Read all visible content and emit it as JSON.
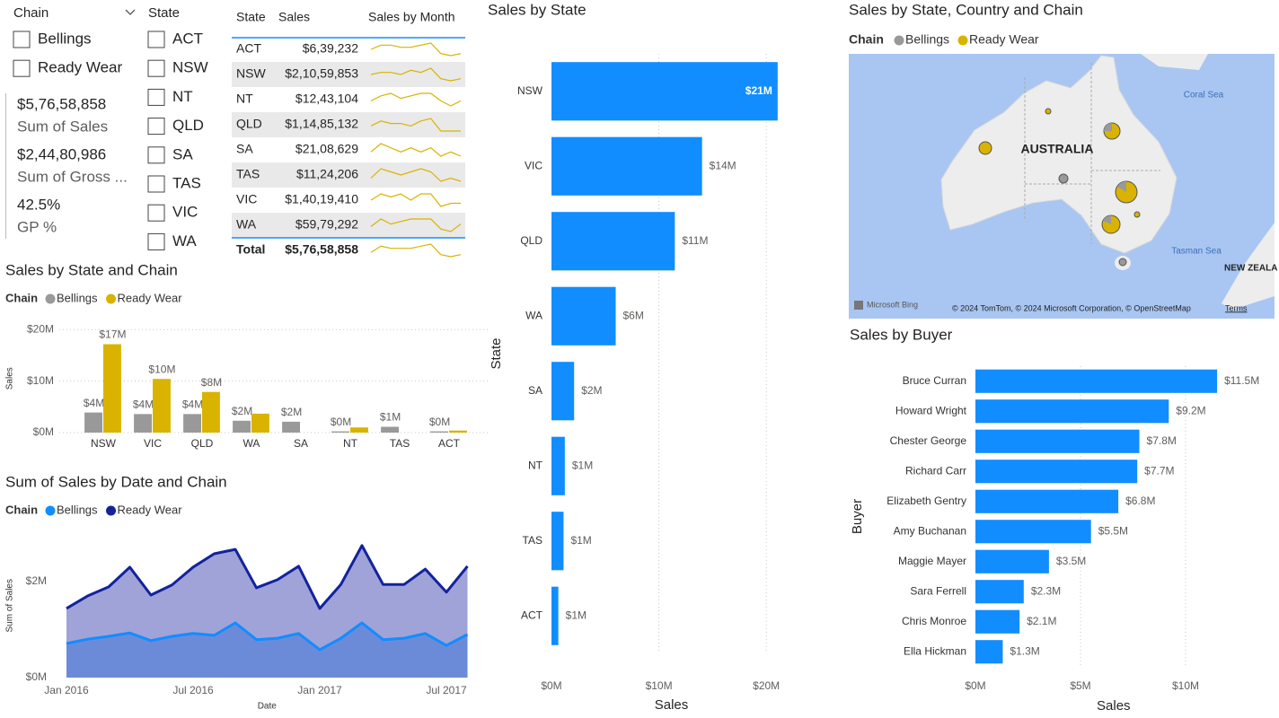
{
  "slicers": [
    {
      "title": "Chain",
      "options": [
        "Bellings",
        "Ready Wear"
      ]
    },
    {
      "title": "State",
      "options": [
        "ACT",
        "NSW",
        "NT",
        "QLD",
        "SA",
        "TAS",
        "VIC",
        "WA"
      ]
    }
  ],
  "cards": [
    {
      "value": "$5,76,58,858",
      "label": "Sum of Sales"
    },
    {
      "value": "$2,44,80,986",
      "label": "Sum of Gross ..."
    },
    {
      "value": "42.5%",
      "label": "GP %"
    }
  ],
  "table": {
    "columns": [
      "State",
      "Sales",
      "Sales by Month"
    ],
    "rows": [
      [
        "ACT",
        "$6,39,232"
      ],
      [
        "NSW",
        "$2,10,59,853"
      ],
      [
        "NT",
        "$12,43,104"
      ],
      [
        "QLD",
        "$1,14,85,132"
      ],
      [
        "SA",
        "$21,08,629"
      ],
      [
        "TAS",
        "$11,24,206"
      ],
      [
        "VIC",
        "$1,40,19,410"
      ],
      [
        "WA",
        "$59,79,292"
      ]
    ],
    "total": [
      "Total",
      "$5,76,58,858"
    ],
    "sparklines": [
      [
        5,
        7,
        7,
        6,
        6,
        7,
        8,
        3,
        2,
        3
      ],
      [
        5,
        6,
        6,
        5,
        7,
        6,
        8,
        3,
        2,
        3
      ],
      [
        4,
        6,
        7,
        5,
        6,
        7,
        7,
        4,
        2,
        4
      ],
      [
        5,
        7,
        6,
        6,
        5,
        7,
        8,
        3,
        3,
        3
      ],
      [
        6,
        8,
        7,
        6,
        7,
        6,
        7,
        5,
        6,
        5
      ],
      [
        4,
        7,
        6,
        5,
        6,
        7,
        6,
        3,
        4,
        3
      ],
      [
        5,
        7,
        6,
        7,
        5,
        7,
        7,
        3,
        4,
        4
      ],
      [
        4,
        7,
        5,
        6,
        7,
        7,
        7,
        3,
        2,
        5
      ]
    ],
    "total_sparkline": [
      4,
      7,
      6,
      6,
      6,
      7,
      8,
      3,
      2,
      3
    ]
  },
  "map": {
    "title": "Sales by State, Country and Chain",
    "legend_title": "Chain",
    "legend": [
      {
        "name": "Bellings",
        "color": "#999999"
      },
      {
        "name": "Ready Wear",
        "color": "#D9B300"
      }
    ],
    "labels": [
      "AUSTRALIA",
      "Coral Sea",
      "Tasman Sea",
      "NEW ZEALA"
    ],
    "brand": "Microsoft Bing",
    "attribution": "© 2024 TomTom, © 2024 Microsoft Corporation, © OpenStreetMap",
    "terms": "Terms"
  },
  "chart_data": [
    {
      "type": "hbar",
      "title": "Sales by State",
      "categories": [
        "NSW",
        "VIC",
        "QLD",
        "WA",
        "SA",
        "NT",
        "TAS",
        "ACT"
      ],
      "values": [
        21059853,
        14019410,
        11485132,
        5979292,
        2108629,
        1243104,
        1124206,
        639232
      ],
      "value_labels": [
        "$21M",
        "$14M",
        "$11M",
        "$6M",
        "$2M",
        "$1M",
        "$1M",
        "$1M"
      ],
      "color": "#118DFF",
      "xlim": [
        0,
        24000000
      ],
      "xticks": [
        {
          "value": 0,
          "label": "$0M"
        },
        {
          "value": 10000000,
          "label": "$10M"
        },
        {
          "value": 20000000,
          "label": "$20M"
        }
      ],
      "xlabel": "Sales",
      "ylabel": "State",
      "grid": true
    },
    {
      "type": "column",
      "title": "Sales by State and Chain",
      "legend_title": "Chain",
      "categories": [
        "NSW",
        "VIC",
        "QLD",
        "WA",
        "SA",
        "NT",
        "TAS",
        "ACT"
      ],
      "series": [
        {
          "name": "Bellings",
          "color": "#999999",
          "values": [
            3900000,
            3600000,
            3600000,
            2300000,
            2108629,
            240000,
            1124206,
            240000
          ],
          "value_labels": [
            "$4M",
            "$4M",
            "$4M",
            "$2M",
            "$2M",
            "$0M",
            "$1M",
            "$0M"
          ]
        },
        {
          "name": "Ready Wear",
          "color": "#D9B300",
          "values": [
            17160000,
            10420000,
            7890000,
            3680000,
            null,
            1000000,
            null,
            400000
          ],
          "value_labels": [
            "$17M",
            "$10M",
            "$8M",
            null,
            null,
            null,
            null,
            null
          ]
        }
      ],
      "ylim": [
        0,
        21000000
      ],
      "yticks": [
        {
          "value": 0,
          "label": "$0M"
        },
        {
          "value": 10000000,
          "label": "$10M"
        },
        {
          "value": 20000000,
          "label": "$20M"
        }
      ],
      "ylabel": "Sales",
      "grid": true
    },
    {
      "type": "area",
      "title": "Sum of Sales by Date and Chain",
      "legend_title": "Chain",
      "stacked": true,
      "x": [
        "2016-01",
        "2016-02",
        "2016-03",
        "2016-04",
        "2016-05",
        "2016-06",
        "2016-07",
        "2016-08",
        "2016-09",
        "2016-10",
        "2016-11",
        "2016-12",
        "2017-01",
        "2017-02",
        "2017-03",
        "2017-04",
        "2017-05",
        "2017-06",
        "2017-07",
        "2017-08"
      ],
      "series": [
        {
          "name": "Bellings",
          "color": "#118DFF",
          "fill": "#6B8BD9",
          "values": [
            710000,
            800000,
            860000,
            930000,
            770000,
            860000,
            920000,
            880000,
            1140000,
            790000,
            820000,
            920000,
            580000,
            820000,
            1140000,
            790000,
            820000,
            920000,
            670000,
            900000
          ]
        },
        {
          "name": "Ready Wear",
          "color": "#12239E",
          "fill": "#A0A3D8",
          "values": [
            730000,
            900000,
            1030000,
            1370000,
            950000,
            1070000,
            1380000,
            1700000,
            1530000,
            1080000,
            1220000,
            1400000,
            860000,
            1120000,
            1610000,
            1150000,
            1120000,
            1340000,
            1110000,
            1420000
          ]
        }
      ],
      "xticks": [
        {
          "value": "2016-01",
          "label": "Jan 2016"
        },
        {
          "value": "2016-07",
          "label": "Jul 2016"
        },
        {
          "value": "2017-01",
          "label": "Jan 2017"
        },
        {
          "value": "2017-07",
          "label": "Jul 2017"
        }
      ],
      "ylim": [
        0,
        3000000
      ],
      "yticks": [
        {
          "value": 0,
          "label": "$0M"
        },
        {
          "value": 2000000,
          "label": "$2M"
        }
      ],
      "xlabel": "Date",
      "ylabel": "Sum of Sales",
      "grid": false
    },
    {
      "type": "hbar",
      "title": "Sales by Buyer",
      "categories": [
        "Bruce Curran",
        "Howard Wright",
        "Chester George",
        "Richard Carr",
        "Elizabeth Gentry",
        "Amy Buchanan",
        "Maggie Mayer",
        "Sara Ferrell",
        "Chris Monroe",
        "Ella Hickman"
      ],
      "values": [
        11500000,
        9200000,
        7800000,
        7700000,
        6800000,
        5500000,
        3500000,
        2300000,
        2100000,
        1300000
      ],
      "value_labels": [
        "$11.5M",
        "$9.2M",
        "$7.8M",
        "$7.7M",
        "$6.8M",
        "$5.5M",
        "$3.5M",
        "$2.3M",
        "$2.1M",
        "$1.3M"
      ],
      "color": "#118DFF",
      "xlim": [
        0,
        14000000
      ],
      "xticks": [
        {
          "value": 0,
          "label": "$0M"
        },
        {
          "value": 5000000,
          "label": "$5M"
        },
        {
          "value": 10000000,
          "label": "$10M"
        }
      ],
      "xlabel": "Sales",
      "ylabel": "Buyer",
      "grid": true
    }
  ]
}
